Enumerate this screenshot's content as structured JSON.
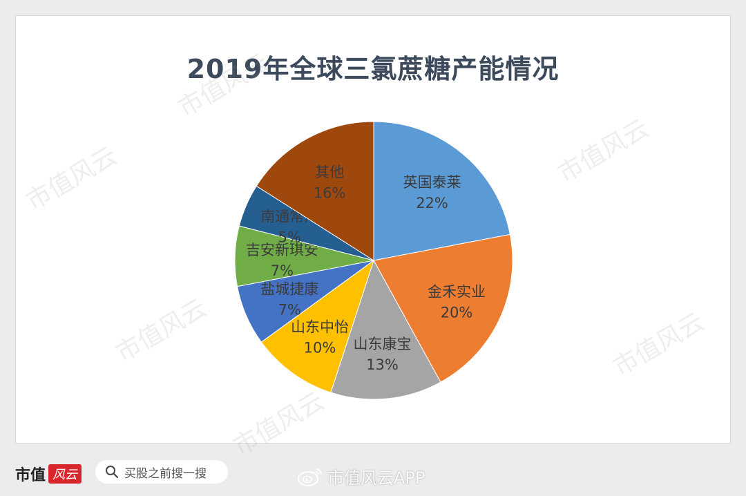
{
  "chart_data": {
    "type": "pie",
    "title": "2019年全球三氯蔗糖产能情况",
    "slices": [
      {
        "label": "英国泰莱",
        "value": 22,
        "value_label": "22%",
        "color": "#5b9bd5"
      },
      {
        "label": "金禾实业",
        "value": 20,
        "value_label": "20%",
        "color": "#ed7d31"
      },
      {
        "label": "山东康宝",
        "value": 13,
        "value_label": "13%",
        "color": "#a5a5a5"
      },
      {
        "label": "山东中怡",
        "value": 10,
        "value_label": "10%",
        "color": "#ffc000"
      },
      {
        "label": "盐城捷康",
        "value": 7,
        "value_label": "7%",
        "color": "#4472c4"
      },
      {
        "label": "吉安新琪安",
        "value": 7,
        "value_label": "7%",
        "color": "#70ad47"
      },
      {
        "label": "南通常海",
        "value": 5,
        "value_label": "5%",
        "color": "#255e91"
      },
      {
        "label": "其他",
        "value": 16,
        "value_label": "16%",
        "color": "#9e480e"
      }
    ],
    "start_angle": "12 o'clock",
    "direction": "clockwise",
    "legend": "none"
  },
  "watermark_text": "市值风云",
  "footer": {
    "brand": "市值",
    "brand_badge": "风云",
    "search_label": "买股之前搜一搜",
    "weibo_handle": "市值风云APP"
  },
  "icons": [
    "search-icon",
    "weibo-icon"
  ]
}
